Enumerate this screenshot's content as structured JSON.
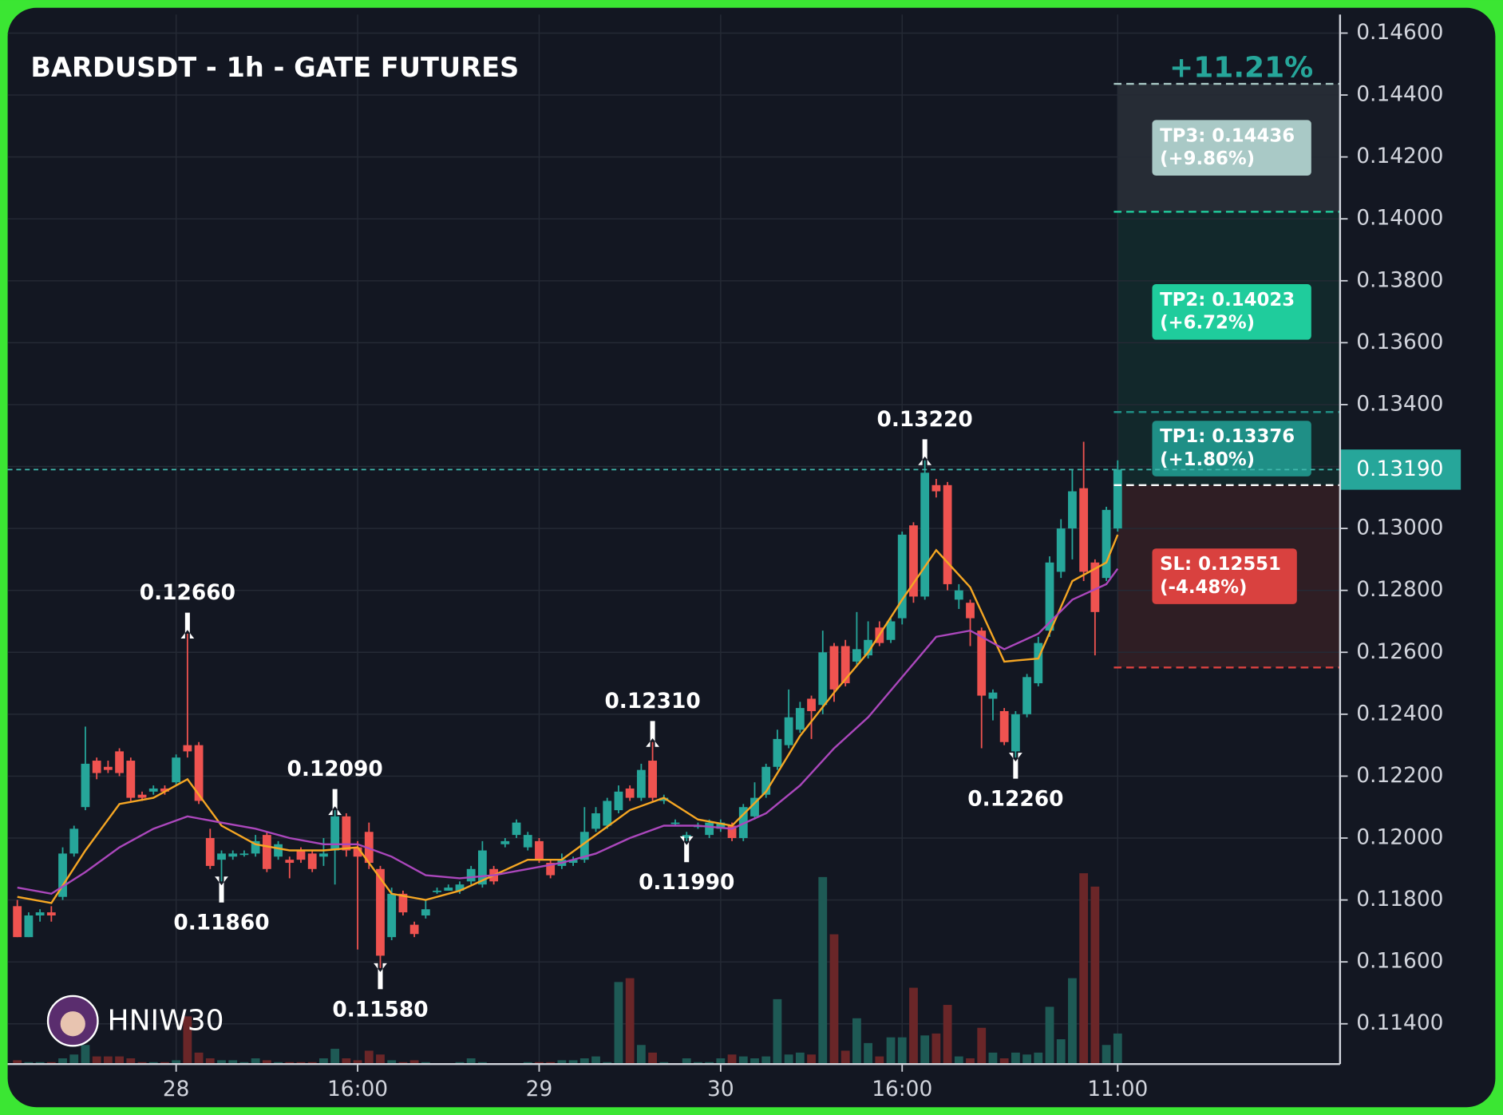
{
  "chart_data": {
    "type": "candlestick",
    "title": "BARDUSDT - 1h - GATE FUTURES",
    "watermark": "HNIW30",
    "range_change": "+11.21%",
    "open": [
      0.1178,
      0.1168,
      0.1175,
      0.1176,
      0.1181,
      0.1195,
      0.121,
      0.1225,
      0.1223,
      0.1228,
      0.1225,
      0.1214,
      0.1215,
      0.1216,
      0.1218,
      0.123,
      0.123,
      0.12,
      0.1193,
      0.1194,
      0.1195,
      0.1195,
      0.1201,
      0.1194,
      0.1193,
      0.1196,
      0.1195,
      0.1194,
      0.1196,
      0.1207,
      0.1197,
      0.1202,
      0.119,
      0.1168,
      0.1182,
      0.1172,
      0.1175,
      0.1183,
      0.1183,
      0.1183,
      0.1186,
      0.1185,
      0.119,
      0.1198,
      0.1201,
      0.1197,
      0.1199,
      0.1192,
      0.1191,
      0.1192,
      0.1193,
      0.1203,
      0.1204,
      0.1209,
      0.1216,
      0.1213,
      0.1225,
      0.1212,
      0.1205,
      0.12,
      0.1204,
      0.1201,
      0.1203,
      0.1204,
      0.12,
      0.1207,
      0.1214,
      0.1223,
      0.123,
      0.1235,
      0.1245,
      0.1243,
      0.1262,
      0.1262,
      0.1257,
      0.1259,
      0.1268,
      0.1264,
      0.1271,
      0.1301,
      0.1278,
      0.1314,
      0.1314,
      0.1277,
      0.1276,
      0.1267,
      0.1245,
      0.1241,
      0.1228,
      0.124,
      0.125,
      0.1267,
      0.1286,
      0.13,
      0.1313,
      0.1289,
      0.1284,
      0.13
    ],
    "high": [
      0.118,
      0.1176,
      0.1177,
      0.1178,
      0.1197,
      0.1204,
      0.1236,
      0.1226,
      0.1225,
      0.1229,
      0.1226,
      0.1215,
      0.1217,
      0.1217,
      0.1227,
      0.1266,
      0.1231,
      0.1203,
      0.1196,
      0.1196,
      0.1196,
      0.1201,
      0.1202,
      0.1199,
      0.1194,
      0.1197,
      0.1196,
      0.12,
      0.1209,
      0.1208,
      0.1199,
      0.1205,
      0.1191,
      0.1184,
      0.1183,
      0.1173,
      0.118,
      0.1184,
      0.1185,
      0.1186,
      0.1191,
      0.1199,
      0.1191,
      0.12,
      0.1206,
      0.1202,
      0.12,
      0.1193,
      0.1195,
      0.1194,
      0.121,
      0.121,
      0.1213,
      0.1217,
      0.1217,
      0.1224,
      0.1231,
      0.1214,
      0.1206,
      0.1202,
      0.1205,
      0.1206,
      0.1206,
      0.1205,
      0.1211,
      0.1218,
      0.1224,
      0.1235,
      0.1248,
      0.1244,
      0.1246,
      0.1267,
      0.1263,
      0.1264,
      0.1273,
      0.127,
      0.127,
      0.1271,
      0.1299,
      0.1302,
      0.1322,
      0.1316,
      0.1315,
      0.1282,
      0.1277,
      0.1268,
      0.1248,
      0.1242,
      0.1241,
      0.1253,
      0.1265,
      0.1291,
      0.1303,
      0.1319,
      0.1328,
      0.129,
      0.1307,
      0.1322
    ],
    "low": [
      0.1168,
      0.1168,
      0.1173,
      0.1173,
      0.118,
      0.1194,
      0.1209,
      0.1219,
      0.1221,
      0.122,
      0.1212,
      0.1212,
      0.1214,
      0.1214,
      0.1217,
      0.1226,
      0.1211,
      0.119,
      0.1186,
      0.1193,
      0.1194,
      0.1194,
      0.1189,
      0.1193,
      0.1187,
      0.1192,
      0.1189,
      0.1191,
      0.1185,
      0.1194,
      0.1164,
      0.119,
      0.1158,
      0.1167,
      0.1175,
      0.1168,
      0.1174,
      0.1182,
      0.1183,
      0.1182,
      0.1185,
      0.1184,
      0.1185,
      0.1197,
      0.12,
      0.1196,
      0.1192,
      0.1187,
      0.119,
      0.1191,
      0.1192,
      0.1202,
      0.1203,
      0.1208,
      0.1212,
      0.1212,
      0.1212,
      0.1211,
      0.1204,
      0.1199,
      0.1203,
      0.12,
      0.1202,
      0.1199,
      0.1199,
      0.1206,
      0.1213,
      0.1222,
      0.1229,
      0.1234,
      0.1232,
      0.124,
      0.1244,
      0.1249,
      0.1256,
      0.1258,
      0.1262,
      0.1263,
      0.1269,
      0.1276,
      0.1277,
      0.131,
      0.128,
      0.1274,
      0.1262,
      0.1229,
      0.1238,
      0.123,
      0.1226,
      0.1239,
      0.1249,
      0.1265,
      0.1284,
      0.129,
      0.1283,
      0.1259,
      0.1283,
      0.1299
    ],
    "close": [
      0.1168,
      0.1175,
      0.1176,
      0.1175,
      0.1195,
      0.1203,
      0.1224,
      0.1221,
      0.1222,
      0.1221,
      0.1213,
      0.1213,
      0.1216,
      0.1215,
      0.1226,
      0.1228,
      0.1212,
      0.1191,
      0.1195,
      0.1195,
      0.1195,
      0.1199,
      0.119,
      0.1198,
      0.1192,
      0.1193,
      0.119,
      0.1195,
      0.1207,
      0.1196,
      0.1194,
      0.1192,
      0.1162,
      0.1182,
      0.1176,
      0.1169,
      0.1177,
      0.1183,
      0.1184,
      0.1185,
      0.119,
      0.1196,
      0.1186,
      0.1199,
      0.1205,
      0.1201,
      0.1193,
      0.1188,
      0.1193,
      0.1193,
      0.1202,
      0.1208,
      0.1212,
      0.1215,
      0.1213,
      0.1222,
      0.1213,
      0.1213,
      0.1205,
      0.1201,
      0.1204,
      0.1205,
      0.1205,
      0.12,
      0.121,
      0.1213,
      0.1223,
      0.1232,
      0.1239,
      0.1242,
      0.1241,
      0.126,
      0.1248,
      0.125,
      0.1261,
      0.1264,
      0.1263,
      0.127,
      0.1298,
      0.1278,
      0.1318,
      0.1312,
      0.1282,
      0.128,
      0.1271,
      0.1246,
      0.1247,
      0.1231,
      0.124,
      0.1252,
      0.1263,
      0.1289,
      0.13,
      0.1312,
      0.1286,
      0.1273,
      0.1306,
      0.1319
    ],
    "volume": [
      2,
      1,
      1,
      1,
      3,
      5,
      10,
      4,
      4,
      4,
      3,
      1,
      1,
      1,
      2,
      25,
      6,
      3,
      2,
      2,
      1,
      3,
      2,
      1,
      1,
      1,
      1,
      3,
      8,
      3,
      2,
      7,
      5,
      2,
      1,
      2,
      1,
      0.5,
      0.5,
      1,
      3,
      1,
      0.5,
      0.5,
      0.5,
      1,
      1,
      1,
      2,
      2,
      3,
      4,
      1,
      43,
      45,
      10,
      6,
      1,
      0.5,
      3,
      1,
      1,
      3,
      5,
      4,
      3,
      4,
      34,
      5,
      6,
      5,
      98,
      68,
      7,
      24,
      11,
      4,
      14,
      14,
      40,
      15,
      16,
      31,
      4,
      3,
      19,
      6,
      3,
      6,
      5,
      6,
      30,
      13,
      45,
      100,
      93,
      10,
      16
    ],
    "colors": {
      "up": "#26a69a",
      "down": "#ef5350",
      "volume_up": "#1e5a55",
      "volume_down": "#6a2628"
    },
    "lines": [
      {
        "color": "#f5a623",
        "x": [
          0,
          3,
          6,
          9,
          12,
          15,
          18,
          21,
          24,
          27,
          30,
          33,
          36,
          39,
          42,
          45,
          48,
          51,
          54,
          57,
          60,
          63,
          66,
          69,
          72,
          75,
          78,
          81,
          84,
          87,
          90,
          93,
          96,
          97
        ],
        "values": [
          0.1181,
          0.1179,
          0.1196,
          0.1211,
          0.1213,
          0.1219,
          0.1204,
          0.1198,
          0.1196,
          0.1196,
          0.1197,
          0.1182,
          0.118,
          0.1183,
          0.1188,
          0.1193,
          0.1193,
          0.1201,
          0.1209,
          0.1213,
          0.1206,
          0.1204,
          0.1215,
          0.1233,
          0.1247,
          0.126,
          0.1277,
          0.1293,
          0.1281,
          0.1257,
          0.1258,
          0.1283,
          0.1289,
          0.1298
        ]
      },
      {
        "color": "#ab47bc",
        "x": [
          0,
          3,
          6,
          9,
          12,
          15,
          18,
          21,
          24,
          27,
          30,
          33,
          36,
          39,
          42,
          45,
          48,
          51,
          54,
          57,
          60,
          63,
          66,
          69,
          72,
          75,
          78,
          81,
          84,
          87,
          90,
          93,
          96,
          97
        ],
        "values": [
          0.1184,
          0.1182,
          0.1189,
          0.1197,
          0.1203,
          0.1207,
          0.1205,
          0.1203,
          0.12,
          0.1198,
          0.1198,
          0.1194,
          0.1188,
          0.1187,
          0.1188,
          0.119,
          0.1192,
          0.1195,
          0.12,
          0.1204,
          0.1204,
          0.1203,
          0.1208,
          0.1217,
          0.1229,
          0.1239,
          0.1252,
          0.1265,
          0.1267,
          0.1261,
          0.1266,
          0.1277,
          0.1282,
          0.1287
        ]
      }
    ],
    "xlim": [
      -0.85,
      116.6
    ],
    "xticks": [
      {
        "value": 14,
        "label": "28"
      },
      {
        "value": 30,
        "label": "16:00"
      },
      {
        "value": 46,
        "label": "29"
      },
      {
        "value": 62,
        "label": "30"
      },
      {
        "value": 78,
        "label": "16:00"
      },
      {
        "value": 97,
        "label": "11:00"
      }
    ],
    "ylim": [
      0.1127,
      0.1466
    ],
    "yticks": [
      {
        "value": 0.114,
        "label": "0.11400"
      },
      {
        "value": 0.116,
        "label": "0.11600"
      },
      {
        "value": 0.118,
        "label": "0.11800"
      },
      {
        "value": 0.12,
        "label": "0.12000"
      },
      {
        "value": 0.122,
        "label": "0.12200"
      },
      {
        "value": 0.124,
        "label": "0.12400"
      },
      {
        "value": 0.126,
        "label": "0.12600"
      },
      {
        "value": 0.128,
        "label": "0.12800"
      },
      {
        "value": 0.13,
        "label": "0.13000"
      },
      {
        "value": 0.132,
        "label": "0.13200"
      },
      {
        "value": 0.134,
        "label": "0.13400"
      },
      {
        "value": 0.136,
        "label": "0.13600"
      },
      {
        "value": 0.138,
        "label": "0.13800"
      },
      {
        "value": 0.14,
        "label": "0.14000"
      },
      {
        "value": 0.142,
        "label": "0.14200"
      },
      {
        "value": 0.144,
        "label": "0.14400"
      },
      {
        "value": 0.146,
        "label": "0.14600"
      }
    ],
    "y2lim": [
      0,
      550
    ],
    "grid": true,
    "annotations": [
      {
        "text": "0.12660",
        "x": 15,
        "value": 0.1266,
        "side": "high"
      },
      {
        "text": "0.11860",
        "x": 18,
        "value": 0.1186,
        "side": "low"
      },
      {
        "text": "0.12090",
        "x": 28,
        "value": 0.1209,
        "side": "high"
      },
      {
        "text": "0.11580",
        "x": 32,
        "value": 0.1158,
        "side": "low"
      },
      {
        "text": "0.12310",
        "x": 56,
        "value": 0.1231,
        "side": "high"
      },
      {
        "text": "0.11990",
        "x": 59,
        "value": 0.1199,
        "side": "low"
      },
      {
        "text": "0.13220",
        "x": 80,
        "value": 0.1322,
        "side": "high"
      },
      {
        "text": "0.12260",
        "x": 88,
        "value": 0.1226,
        "side": "low"
      }
    ],
    "last_price": {
      "value": 0.1319,
      "label": "0.13190"
    },
    "entry": 0.1314,
    "levels": [
      {
        "label": "TP3: 0.14436",
        "change": "(+9.86%)",
        "value": 0.14436,
        "color": "#a9c9c6",
        "zone": "#262c35"
      },
      {
        "label": "TP2: 0.14023",
        "change": "(+6.72%)",
        "value": 0.14023,
        "color": "#1fcc9c",
        "zone": "#12282b"
      },
      {
        "label": "TP1: 0.13376",
        "change": "(+1.80%)",
        "value": 0.13376,
        "color": "#1f8f86",
        "zone": "#12282b"
      },
      {
        "label": "SL: 0.12551",
        "change": "(-4.48%)",
        "value": 0.12551,
        "color": "#d9413f",
        "zone": "#2f1e24"
      }
    ]
  }
}
